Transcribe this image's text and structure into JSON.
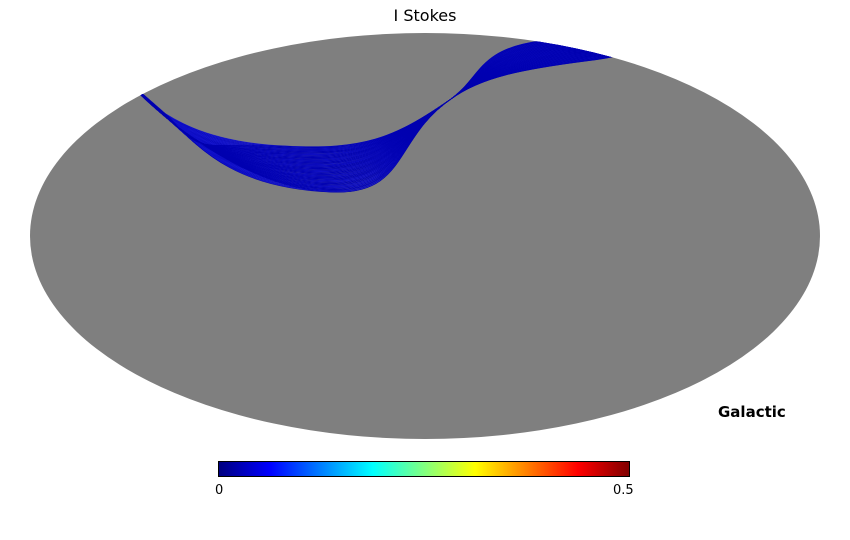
{
  "header": {
    "title": "I Stokes"
  },
  "map": {
    "coord_label": "Galactic",
    "background_color": "#7f7f7f",
    "scan_color_dark": "#0000b0",
    "scan_color_light": "#2020e0"
  },
  "colorbar": {
    "min_label": "0",
    "max_label": "0.5",
    "stops": [
      "#000080",
      "#0000ff",
      "#0080ff",
      "#00ffff",
      "#80ff80",
      "#ffff00",
      "#ff8000",
      "#ff0000",
      "#800000"
    ]
  },
  "chart_data": {
    "type": "heatmap",
    "projection": "mollweide",
    "coordinate_system": "Galactic",
    "title": "I Stokes",
    "colorbar": {
      "min": 0,
      "max": 0.5,
      "colormap": "jet"
    },
    "unobserved_color": "#7f7f7f",
    "observed_region": "narrow sinusoidal scanning band looping through the upper hemisphere with a crossing point near map center-top and dense lobes at upper-left and upper-right",
    "observed_value_approx": 0
  }
}
